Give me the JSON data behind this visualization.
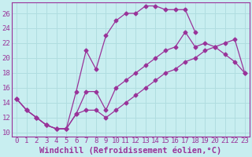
{
  "background_color": "#c8eef0",
  "line_color": "#993399",
  "grid_color": "#b0dde0",
  "xlabel": "Windchill (Refroidissement éolien,°C)",
  "xlabel_fontsize": 7.5,
  "xlim": [
    -0.5,
    23.5
  ],
  "ylim": [
    9.5,
    27.5
  ],
  "xticks": [
    0,
    1,
    2,
    3,
    4,
    5,
    6,
    7,
    8,
    9,
    10,
    11,
    12,
    13,
    14,
    15,
    16,
    17,
    18,
    19,
    20,
    21,
    22,
    23
  ],
  "yticks": [
    10,
    12,
    14,
    16,
    18,
    20,
    22,
    24,
    26
  ],
  "tick_fontsize": 6.5,
  "line_upper_x": [
    0,
    1,
    2,
    3,
    4,
    5,
    6,
    7,
    8,
    9,
    10,
    11,
    12,
    13,
    14,
    15,
    16,
    17,
    18
  ],
  "line_upper_y": [
    14.5,
    13,
    12,
    11,
    10.5,
    10.5,
    15.5,
    21,
    18.5,
    23,
    25,
    26,
    26,
    27,
    27,
    26.5,
    26.5,
    26.5,
    23.5
  ],
  "line_mid_x": [
    0,
    1,
    2,
    3,
    4,
    5,
    6,
    7,
    8,
    9,
    10,
    11,
    12,
    13,
    14,
    15,
    16,
    17,
    18,
    19,
    20,
    21,
    22,
    23
  ],
  "line_mid_y": [
    14.5,
    13,
    12,
    11,
    10.5,
    10.5,
    12.5,
    15.5,
    15.5,
    13,
    16,
    17,
    18,
    19,
    20,
    21,
    21.5,
    23.5,
    21.5,
    22,
    21.5,
    20.5,
    19.5,
    18
  ],
  "line_lower_x": [
    0,
    1,
    2,
    3,
    4,
    5,
    6,
    7,
    8,
    9,
    10,
    11,
    12,
    13,
    14,
    15,
    16,
    17,
    18,
    19,
    20,
    21,
    22,
    23
  ],
  "line_lower_y": [
    14.5,
    13,
    12,
    11,
    10.5,
    10.5,
    12.5,
    13,
    13,
    12,
    13,
    14,
    15,
    16,
    17,
    18,
    18.5,
    19.5,
    20,
    21,
    21.5,
    22,
    22.5,
    18
  ]
}
